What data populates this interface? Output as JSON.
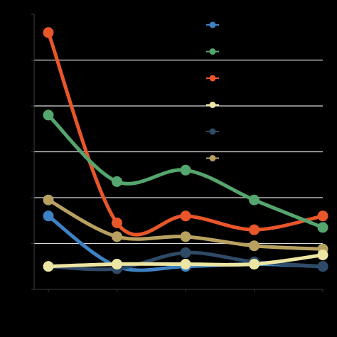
{
  "chart_data": {
    "type": "line",
    "x": [
      0,
      1,
      2,
      3,
      4
    ],
    "ylim": [
      0,
      6
    ],
    "xlim": [
      0,
      4
    ],
    "grid": true,
    "legend_placement": "top-right",
    "series": [
      {
        "color": "#e8562a",
        "values": [
          5.6,
          1.45,
          1.6,
          1.3,
          1.6
        ]
      },
      {
        "color": "#55a66e",
        "values": [
          3.8,
          2.35,
          2.6,
          1.95,
          1.35
        ]
      },
      {
        "color": "#b8a160",
        "values": [
          1.95,
          1.15,
          1.15,
          0.95,
          0.88
        ]
      },
      {
        "color": "#3c82c4",
        "values": [
          1.6,
          0.5,
          0.5,
          0.55,
          0.5
        ]
      },
      {
        "color": "#2e4a66",
        "values": [
          0.5,
          0.45,
          0.8,
          0.6,
          0.5
        ]
      },
      {
        "color": "#ede6a3",
        "values": [
          0.5,
          0.55,
          0.55,
          0.55,
          0.75
        ]
      }
    ],
    "legend": [
      {
        "color": "#3c82c4"
      },
      {
        "color": "#55a66e"
      },
      {
        "color": "#e8562a"
      },
      {
        "color": "#ede6a3"
      },
      {
        "color": "#2e4a66"
      },
      {
        "color": "#b8a160"
      }
    ]
  }
}
